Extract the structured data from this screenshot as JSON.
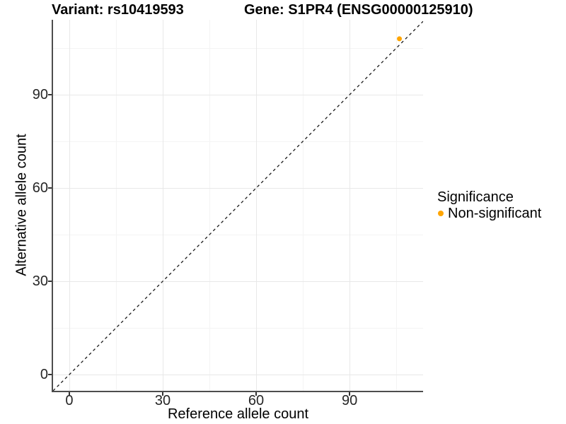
{
  "titles": {
    "variant": "Variant: rs10419593",
    "gene": "Gene: S1PR4 (ENSG00000125910)"
  },
  "legend": {
    "title": "Significance",
    "items": [
      {
        "label": "Non-significant",
        "color": "#FFA500"
      }
    ]
  },
  "colors": {
    "grid_major": "#E8E8E8",
    "grid_minor": "#F4F4F4",
    "axis_line": "#4D4D4D",
    "tick_mark": "#333333",
    "tick_label": "#262626",
    "point": "#FFA500",
    "reference_line": "#1A1A1A"
  },
  "chart_data": {
    "type": "scatter",
    "title": "Variant: rs10419593 — Gene: S1PR4 (ENSG00000125910)",
    "xlabel": "Reference allele count",
    "ylabel": "Alternative allele count",
    "xlim": [
      -5.2,
      113.6
    ],
    "ylim": [
      -5.2,
      114.1
    ],
    "x_major_ticks": [
      0,
      30,
      60,
      90
    ],
    "x_minor_ticks": [
      15,
      45,
      75,
      105
    ],
    "y_major_ticks": [
      0,
      30,
      60,
      90
    ],
    "y_minor_ticks": [
      15,
      45,
      75,
      105
    ],
    "grid": "on",
    "legend_position": "right",
    "series": [
      {
        "name": "Non-significant",
        "color": "#FFA500",
        "points": [
          {
            "x": 106,
            "y": 108
          }
        ]
      }
    ],
    "reference_line": {
      "kind": "identity",
      "slope": 1,
      "intercept": 0,
      "style": "dashed",
      "color": "#1A1A1A"
    }
  }
}
